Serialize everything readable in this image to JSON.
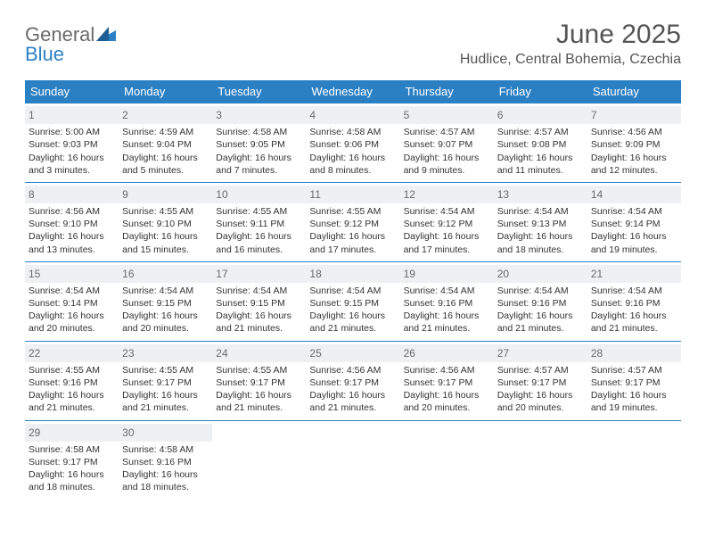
{
  "brand": {
    "part1": "General",
    "part2": "Blue"
  },
  "title": "June 2025",
  "location": "Hudlice, Central Bohemia, Czechia",
  "columns": [
    "Sunday",
    "Monday",
    "Tuesday",
    "Wednesday",
    "Thursday",
    "Friday",
    "Saturday"
  ],
  "colors": {
    "header_bg": "#2b80c4",
    "header_text": "#ffffff",
    "daynum_bg": "#eef0f1",
    "border": "#2b80c4",
    "body_text": "#333333",
    "title_text": "#555555"
  },
  "typography": {
    "title_fontsize": 30,
    "location_fontsize": 16,
    "header_fontsize": 13,
    "cell_fontsize": 10.5,
    "daynum_fontsize": 12
  },
  "weeks": [
    [
      {
        "num": "1",
        "sunrise": "Sunrise: 5:00 AM",
        "sunset": "Sunset: 9:03 PM",
        "daylight": "Daylight: 16 hours and 3 minutes."
      },
      {
        "num": "2",
        "sunrise": "Sunrise: 4:59 AM",
        "sunset": "Sunset: 9:04 PM",
        "daylight": "Daylight: 16 hours and 5 minutes."
      },
      {
        "num": "3",
        "sunrise": "Sunrise: 4:58 AM",
        "sunset": "Sunset: 9:05 PM",
        "daylight": "Daylight: 16 hours and 7 minutes."
      },
      {
        "num": "4",
        "sunrise": "Sunrise: 4:58 AM",
        "sunset": "Sunset: 9:06 PM",
        "daylight": "Daylight: 16 hours and 8 minutes."
      },
      {
        "num": "5",
        "sunrise": "Sunrise: 4:57 AM",
        "sunset": "Sunset: 9:07 PM",
        "daylight": "Daylight: 16 hours and 9 minutes."
      },
      {
        "num": "6",
        "sunrise": "Sunrise: 4:57 AM",
        "sunset": "Sunset: 9:08 PM",
        "daylight": "Daylight: 16 hours and 11 minutes."
      },
      {
        "num": "7",
        "sunrise": "Sunrise: 4:56 AM",
        "sunset": "Sunset: 9:09 PM",
        "daylight": "Daylight: 16 hours and 12 minutes."
      }
    ],
    [
      {
        "num": "8",
        "sunrise": "Sunrise: 4:56 AM",
        "sunset": "Sunset: 9:10 PM",
        "daylight": "Daylight: 16 hours and 13 minutes."
      },
      {
        "num": "9",
        "sunrise": "Sunrise: 4:55 AM",
        "sunset": "Sunset: 9:10 PM",
        "daylight": "Daylight: 16 hours and 15 minutes."
      },
      {
        "num": "10",
        "sunrise": "Sunrise: 4:55 AM",
        "sunset": "Sunset: 9:11 PM",
        "daylight": "Daylight: 16 hours and 16 minutes."
      },
      {
        "num": "11",
        "sunrise": "Sunrise: 4:55 AM",
        "sunset": "Sunset: 9:12 PM",
        "daylight": "Daylight: 16 hours and 17 minutes."
      },
      {
        "num": "12",
        "sunrise": "Sunrise: 4:54 AM",
        "sunset": "Sunset: 9:12 PM",
        "daylight": "Daylight: 16 hours and 17 minutes."
      },
      {
        "num": "13",
        "sunrise": "Sunrise: 4:54 AM",
        "sunset": "Sunset: 9:13 PM",
        "daylight": "Daylight: 16 hours and 18 minutes."
      },
      {
        "num": "14",
        "sunrise": "Sunrise: 4:54 AM",
        "sunset": "Sunset: 9:14 PM",
        "daylight": "Daylight: 16 hours and 19 minutes."
      }
    ],
    [
      {
        "num": "15",
        "sunrise": "Sunrise: 4:54 AM",
        "sunset": "Sunset: 9:14 PM",
        "daylight": "Daylight: 16 hours and 20 minutes."
      },
      {
        "num": "16",
        "sunrise": "Sunrise: 4:54 AM",
        "sunset": "Sunset: 9:15 PM",
        "daylight": "Daylight: 16 hours and 20 minutes."
      },
      {
        "num": "17",
        "sunrise": "Sunrise: 4:54 AM",
        "sunset": "Sunset: 9:15 PM",
        "daylight": "Daylight: 16 hours and 21 minutes."
      },
      {
        "num": "18",
        "sunrise": "Sunrise: 4:54 AM",
        "sunset": "Sunset: 9:15 PM",
        "daylight": "Daylight: 16 hours and 21 minutes."
      },
      {
        "num": "19",
        "sunrise": "Sunrise: 4:54 AM",
        "sunset": "Sunset: 9:16 PM",
        "daylight": "Daylight: 16 hours and 21 minutes."
      },
      {
        "num": "20",
        "sunrise": "Sunrise: 4:54 AM",
        "sunset": "Sunset: 9:16 PM",
        "daylight": "Daylight: 16 hours and 21 minutes."
      },
      {
        "num": "21",
        "sunrise": "Sunrise: 4:54 AM",
        "sunset": "Sunset: 9:16 PM",
        "daylight": "Daylight: 16 hours and 21 minutes."
      }
    ],
    [
      {
        "num": "22",
        "sunrise": "Sunrise: 4:55 AM",
        "sunset": "Sunset: 9:16 PM",
        "daylight": "Daylight: 16 hours and 21 minutes."
      },
      {
        "num": "23",
        "sunrise": "Sunrise: 4:55 AM",
        "sunset": "Sunset: 9:17 PM",
        "daylight": "Daylight: 16 hours and 21 minutes."
      },
      {
        "num": "24",
        "sunrise": "Sunrise: 4:55 AM",
        "sunset": "Sunset: 9:17 PM",
        "daylight": "Daylight: 16 hours and 21 minutes."
      },
      {
        "num": "25",
        "sunrise": "Sunrise: 4:56 AM",
        "sunset": "Sunset: 9:17 PM",
        "daylight": "Daylight: 16 hours and 21 minutes."
      },
      {
        "num": "26",
        "sunrise": "Sunrise: 4:56 AM",
        "sunset": "Sunset: 9:17 PM",
        "daylight": "Daylight: 16 hours and 20 minutes."
      },
      {
        "num": "27",
        "sunrise": "Sunrise: 4:57 AM",
        "sunset": "Sunset: 9:17 PM",
        "daylight": "Daylight: 16 hours and 20 minutes."
      },
      {
        "num": "28",
        "sunrise": "Sunrise: 4:57 AM",
        "sunset": "Sunset: 9:17 PM",
        "daylight": "Daylight: 16 hours and 19 minutes."
      }
    ],
    [
      {
        "num": "29",
        "sunrise": "Sunrise: 4:58 AM",
        "sunset": "Sunset: 9:17 PM",
        "daylight": "Daylight: 16 hours and 18 minutes."
      },
      {
        "num": "30",
        "sunrise": "Sunrise: 4:58 AM",
        "sunset": "Sunset: 9:16 PM",
        "daylight": "Daylight: 16 hours and 18 minutes."
      },
      {
        "empty": true
      },
      {
        "empty": true
      },
      {
        "empty": true
      },
      {
        "empty": true
      },
      {
        "empty": true
      }
    ]
  ]
}
